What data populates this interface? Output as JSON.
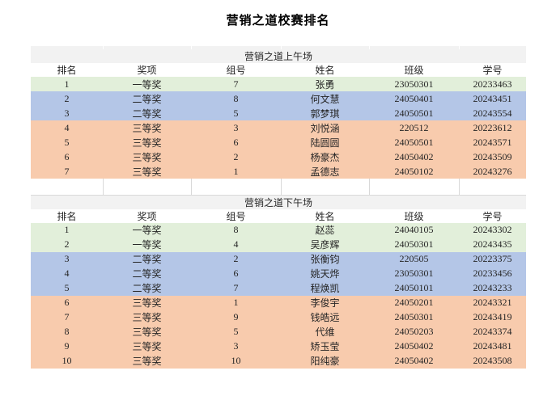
{
  "page_title": "营销之道校赛排名",
  "columns": [
    "排名",
    "奖项",
    "组号",
    "姓名",
    "班级",
    "学号"
  ],
  "tables": [
    {
      "section_title": "营销之道上午场",
      "rows": [
        {
          "rank": "1",
          "award": "一等奖",
          "group": "7",
          "name": "张勇",
          "class": "23050301",
          "student_id": "20233463",
          "tier": "first"
        },
        {
          "rank": "2",
          "award": "二等奖",
          "group": "8",
          "name": "何文慧",
          "class": "24050401",
          "student_id": "20243451",
          "tier": "second"
        },
        {
          "rank": "3",
          "award": "二等奖",
          "group": "5",
          "name": "郭梦琪",
          "class": "24050501",
          "student_id": "20243554",
          "tier": "second"
        },
        {
          "rank": "4",
          "award": "三等奖",
          "group": "3",
          "name": "刘悦涵",
          "class": "220512",
          "student_id": "20223612",
          "tier": "third"
        },
        {
          "rank": "5",
          "award": "三等奖",
          "group": "6",
          "name": "陆圆圆",
          "class": "24050501",
          "student_id": "20243571",
          "tier": "third"
        },
        {
          "rank": "6",
          "award": "三等奖",
          "group": "2",
          "name": "杨豪杰",
          "class": "24050402",
          "student_id": "20243509",
          "tier": "third"
        },
        {
          "rank": "7",
          "award": "三等奖",
          "group": "1",
          "name": "孟德志",
          "class": "24050102",
          "student_id": "20243276",
          "tier": "third"
        }
      ]
    },
    {
      "section_title": "营销之道下午场",
      "rows": [
        {
          "rank": "1",
          "award": "一等奖",
          "group": "8",
          "name": "赵蕊",
          "class": "24040105",
          "student_id": "20243302",
          "tier": "first"
        },
        {
          "rank": "2",
          "award": "一等奖",
          "group": "4",
          "name": "吴彦辉",
          "class": "24050301",
          "student_id": "20243435",
          "tier": "first"
        },
        {
          "rank": "3",
          "award": "二等奖",
          "group": "2",
          "name": "张衡钧",
          "class": "220505",
          "student_id": "20223375",
          "tier": "second"
        },
        {
          "rank": "4",
          "award": "二等奖",
          "group": "6",
          "name": "姚天烨",
          "class": "23050301",
          "student_id": "20233456",
          "tier": "second"
        },
        {
          "rank": "5",
          "award": "二等奖",
          "group": "7",
          "name": "程焕凯",
          "class": "24050101",
          "student_id": "20243233",
          "tier": "second"
        },
        {
          "rank": "6",
          "award": "三等奖",
          "group": "1",
          "name": "李俊宇",
          "class": "24050201",
          "student_id": "20243321",
          "tier": "third"
        },
        {
          "rank": "7",
          "award": "三等奖",
          "group": "9",
          "name": "钱皓远",
          "class": "24050301",
          "student_id": "20243419",
          "tier": "third"
        },
        {
          "rank": "8",
          "award": "三等奖",
          "group": "5",
          "name": "代维",
          "class": "24050203",
          "student_id": "20243374",
          "tier": "third"
        },
        {
          "rank": "9",
          "award": "三等奖",
          "group": "3",
          "name": "矫玉莹",
          "class": "24050402",
          "student_id": "20243481",
          "tier": "third"
        },
        {
          "rank": "10",
          "award": "三等奖",
          "group": "10",
          "name": "阳纯豪",
          "class": "24050402",
          "student_id": "20243508",
          "tier": "third"
        }
      ]
    }
  ],
  "colors": {
    "first_place_bg": "#e2efda",
    "second_place_bg": "#b4c6e7",
    "third_place_bg": "#f8cbad",
    "section_header_bg": "#f2f2f2",
    "text": "#262626",
    "grid_line": "#d9d9d9"
  }
}
